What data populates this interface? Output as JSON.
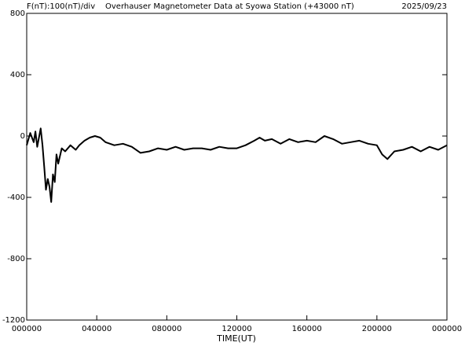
{
  "chart_data": {
    "type": "line",
    "left_title": "F(nT):100(nT)/div",
    "title": "Overhauser Magnetometer Data at Syowa Station (+43000 nT)",
    "date": "2025/09/23",
    "x_label": "TIME(UT)",
    "xlim": [
      0,
      24
    ],
    "xticks": [
      {
        "value": 0,
        "label": "000000"
      },
      {
        "value": 4,
        "label": "040000"
      },
      {
        "value": 8,
        "label": "080000"
      },
      {
        "value": 12,
        "label": "120000"
      },
      {
        "value": 16,
        "label": "160000"
      },
      {
        "value": 20,
        "label": "200000"
      },
      {
        "value": 24,
        "label": "000000"
      }
    ],
    "ylim": [
      -1200,
      800
    ],
    "yticks": [
      800,
      400,
      0,
      -400,
      -800,
      -1200
    ],
    "color": "#000000",
    "x": [
      0,
      0.2,
      0.4,
      0.5,
      0.6,
      0.8,
      0.9,
      1.0,
      1.1,
      1.2,
      1.3,
      1.4,
      1.5,
      1.6,
      1.7,
      1.8,
      2.0,
      2.2,
      2.5,
      2.8,
      3.0,
      3.3,
      3.6,
      3.9,
      4.2,
      4.5,
      5.0,
      5.5,
      6.0,
      6.5,
      7.0,
      7.5,
      8.0,
      8.5,
      9.0,
      9.5,
      10.0,
      10.5,
      11.0,
      11.5,
      12.0,
      12.5,
      13.0,
      13.3,
      13.6,
      14.0,
      14.5,
      15.0,
      15.5,
      16.0,
      16.5,
      17.0,
      17.5,
      18.0,
      18.5,
      19.0,
      19.5,
      20.0,
      20.3,
      20.6,
      21.0,
      21.5,
      22.0,
      22.5,
      23.0,
      23.5,
      24.0
    ],
    "values": [
      -60,
      20,
      -40,
      30,
      -70,
      50,
      -60,
      -200,
      -350,
      -280,
      -330,
      -430,
      -250,
      -300,
      -120,
      -180,
      -80,
      -100,
      -60,
      -90,
      -60,
      -30,
      -10,
      0,
      -10,
      -40,
      -60,
      -50,
      -70,
      -110,
      -100,
      -80,
      -90,
      -70,
      -90,
      -80,
      -80,
      -90,
      -70,
      -80,
      -80,
      -60,
      -30,
      -10,
      -30,
      -20,
      -50,
      -20,
      -40,
      -30,
      -40,
      0,
      -20,
      -50,
      -40,
      -30,
      -50,
      -60,
      -120,
      -150,
      -100,
      -90,
      -70,
      -100,
      -70,
      -90,
      -60
    ]
  }
}
